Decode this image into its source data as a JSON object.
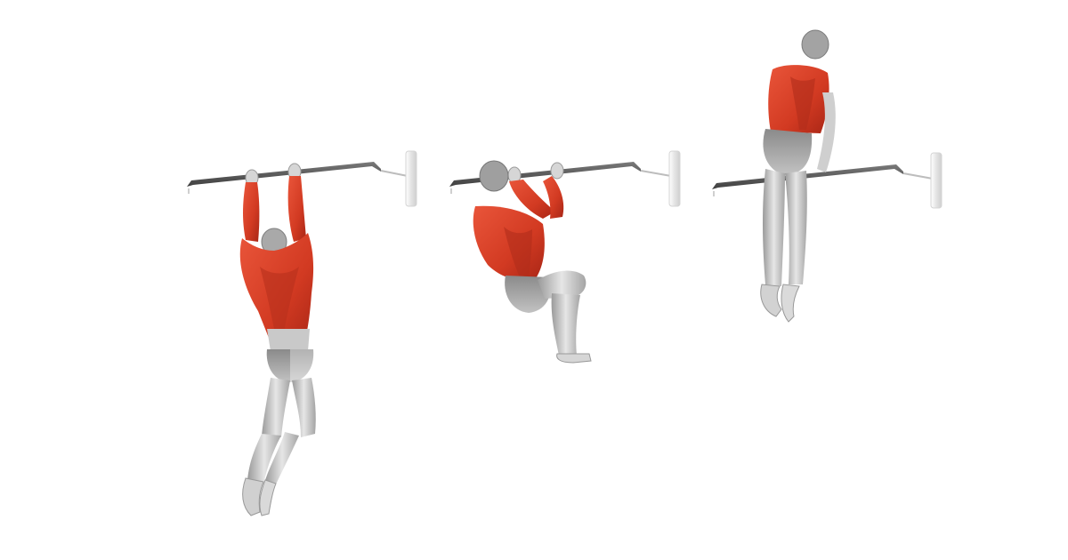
{
  "image": {
    "subject": "muscle-up-sequence",
    "frames": [
      {
        "id": "frame-1",
        "phase": "dead-hang"
      },
      {
        "id": "frame-2",
        "phase": "pull"
      },
      {
        "id": "frame-3",
        "phase": "dip-top"
      }
    ],
    "colors": {
      "background": "#ffffff",
      "muscle_highlight": "#d83a22",
      "muscle_dark": "#a52414",
      "body_gray": "#b9b9b9",
      "body_light": "#e3e3e3",
      "body_dark": "#8e8e8e",
      "bar": "#5a5a5a",
      "bracket": "#e8e8e8"
    }
  }
}
